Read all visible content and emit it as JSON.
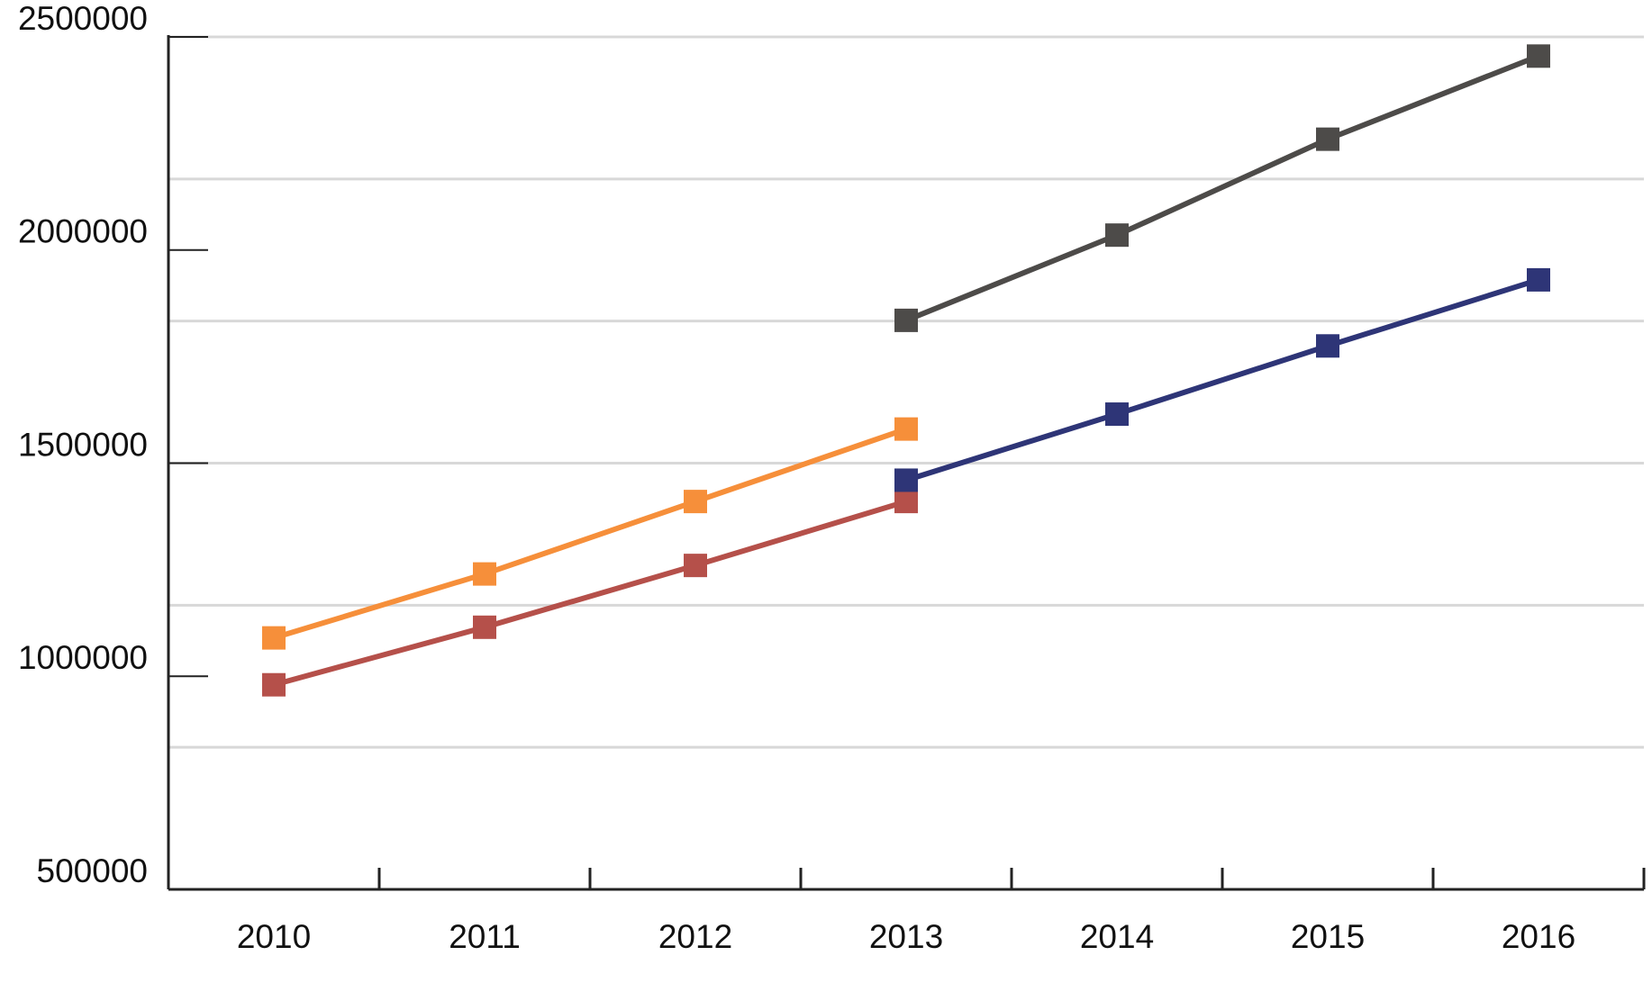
{
  "chart_data": {
    "type": "line",
    "categories": [
      "2010",
      "2011",
      "2012",
      "2013",
      "2014",
      "2015",
      "2016"
    ],
    "series": [
      {
        "color": "#f68f3a",
        "values": [
          1090000,
          1240000,
          1410000,
          1580000,
          null,
          null,
          null
        ]
      },
      {
        "color": "#b5504a",
        "values": [
          980000,
          1115000,
          1260000,
          1410000,
          null,
          null,
          null
        ]
      },
      {
        "color": "#2e3577",
        "values": [
          null,
          null,
          null,
          1460000,
          1615000,
          1775000,
          1930000
        ]
      },
      {
        "color": "#4d4b49",
        "values": [
          null,
          null,
          null,
          1835000,
          2035000,
          2260000,
          2455000
        ]
      }
    ],
    "ylim": [
      500000,
      2500000
    ],
    "yticks": [
      500000,
      1000000,
      1500000,
      2000000,
      2500000
    ],
    "ygrid": [
      833333,
      1166667,
      1500000,
      1833333,
      2166667,
      2500000
    ],
    "grid": true,
    "marker": "square"
  }
}
